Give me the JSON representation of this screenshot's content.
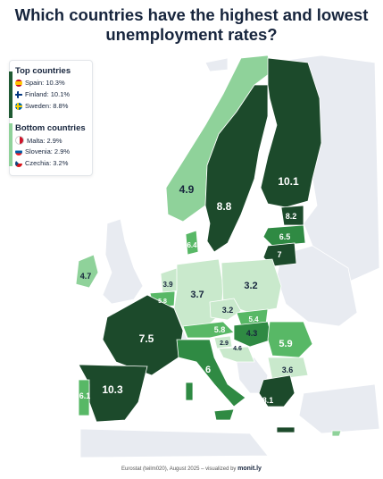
{
  "title": "Which countries have the highest and lowest unemployment rates?",
  "legend": {
    "top_heading": "Top countries",
    "top": [
      {
        "flag": "spain-flag",
        "label": "Spain: 10.3%"
      },
      {
        "flag": "finland-flag",
        "label": "Finland: 10.1%"
      },
      {
        "flag": "sweden-flag",
        "label": "Sweden: 8.8%"
      }
    ],
    "bottom_heading": "Bottom countries",
    "bottom": [
      {
        "flag": "malta-flag",
        "label": "Malta: 2.9%"
      },
      {
        "flag": "slovenia-flag",
        "label": "Slovenia: 2.9%"
      },
      {
        "flag": "czechia-flag",
        "label": "Czechia: 3.2%"
      }
    ]
  },
  "footer": {
    "source": "Eurostat (teilm020), August 2025 – visualized by",
    "brand": "monit.ly"
  },
  "colors": {
    "darkest": "#1c4a2b",
    "dark": "#2f8a43",
    "mid": "#58b866",
    "light": "#8fd29a",
    "lightest": "#c9e9cc",
    "no_data": "#e8ebf1",
    "text": "#17253d"
  },
  "map_labels": {
    "norway": "4.9",
    "sweden": "8.8",
    "finland": "10.1",
    "estonia": "8.2",
    "latvia": "6.5",
    "lithuania": "7",
    "denmark": "6.4",
    "ireland": "4.7",
    "netherlands": "3.9",
    "belgium": "5.8",
    "germany": "3.7",
    "poland": "3.2",
    "czechia": "3.2",
    "slovakia": "5.4",
    "austria": "5.8",
    "hungary": "4.3",
    "slovenia": "2.9",
    "croatia": "4.6",
    "romania": "5.9",
    "bulgaria": "3.6",
    "france": "7.5",
    "italy": "6",
    "spain": "10.3",
    "portugal": "6.1",
    "greece": "8.1"
  }
}
